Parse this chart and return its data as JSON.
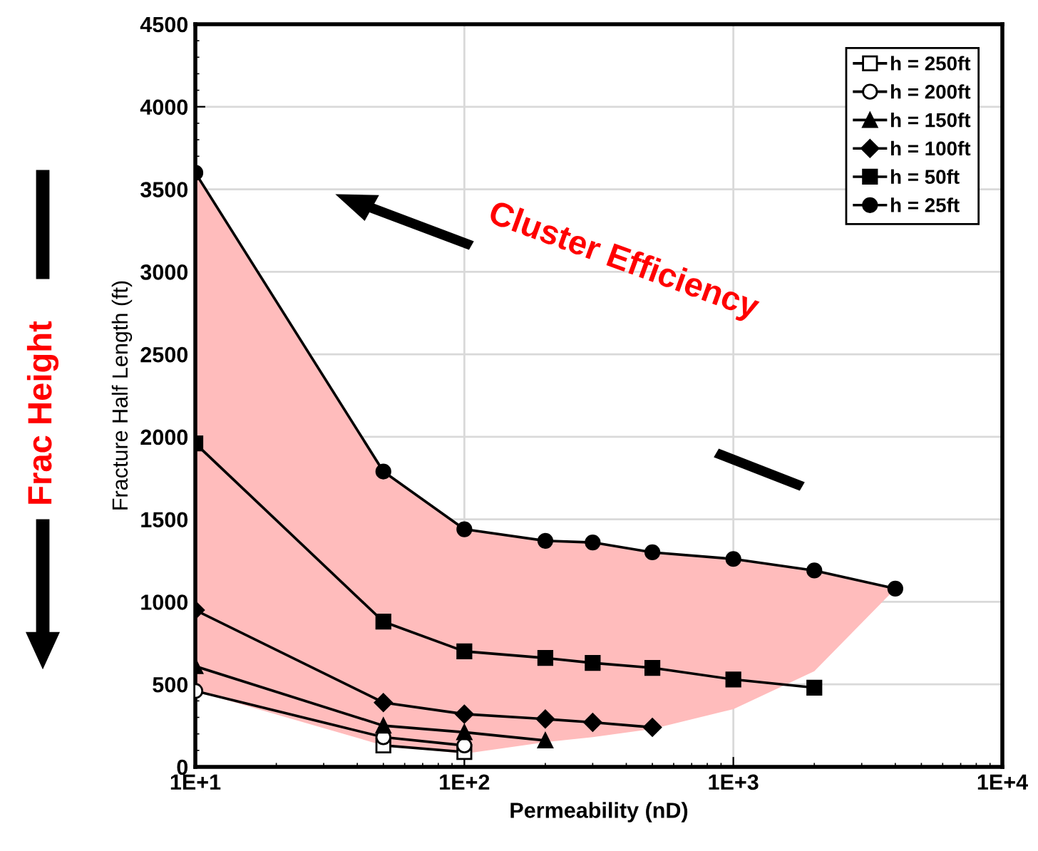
{
  "chart_data": {
    "type": "line",
    "xlabel": "Permeability (nD)",
    "ylabel": "Fracture Half Length (ft)",
    "log": "x",
    "xlim": [
      10,
      10000
    ],
    "xticks": [
      {
        "value": 10,
        "label": "1E+1"
      },
      {
        "value": 100,
        "label": "1E+2"
      },
      {
        "value": 1000,
        "label": "1E+3"
      },
      {
        "value": 10000,
        "label": "1E+4"
      }
    ],
    "ylim": [
      0,
      4500
    ],
    "yticks": [
      0,
      500,
      1000,
      1500,
      2000,
      2500,
      3000,
      3500,
      4000,
      4500
    ],
    "grid": true,
    "legend": "top right",
    "line_style": "solid",
    "annotations": [
      "Cluster Efficiency",
      "Frac Height"
    ],
    "series": [
      {
        "name": "h = 250ft",
        "color": "#ffffff",
        "marker": "square",
        "x": [
          50,
          100
        ],
        "values": [
          130,
          90
        ]
      },
      {
        "name": "h = 200ft",
        "color": "#ffffff",
        "marker": "circle",
        "x": [
          10,
          50,
          100
        ],
        "values": [
          460,
          180,
          130
        ]
      },
      {
        "name": "h = 150ft",
        "color": "#000000",
        "marker": "triangle",
        "x": [
          10,
          50,
          100,
          200
        ],
        "values": [
          610,
          250,
          210,
          160
        ]
      },
      {
        "name": "h = 100ft",
        "color": "#000000",
        "marker": "diamond",
        "x": [
          10,
          50,
          100,
          200,
          300,
          500
        ],
        "values": [
          950,
          390,
          320,
          290,
          270,
          240
        ]
      },
      {
        "name": "h = 50ft",
        "color": "#000000",
        "marker": "square",
        "x": [
          10,
          50,
          100,
          200,
          300,
          500,
          1000,
          2000
        ],
        "values": [
          1960,
          880,
          700,
          660,
          630,
          600,
          530,
          480
        ]
      },
      {
        "name": "h = 25ft",
        "color": "#000000",
        "marker": "circle",
        "x": [
          10,
          50,
          100,
          200,
          300,
          500,
          1000,
          2000,
          4000
        ],
        "values": [
          3600,
          1790,
          1440,
          1370,
          1360,
          1300,
          1260,
          1190,
          1080
        ],
        "upper": [
          3600,
          1790,
          1440,
          1370,
          1360,
          1300,
          1260,
          1190,
          1080
        ],
        "lower": [
          460,
          130,
          80,
          150,
          180,
          230,
          350,
          580,
          1080
        ]
      }
    ]
  }
}
